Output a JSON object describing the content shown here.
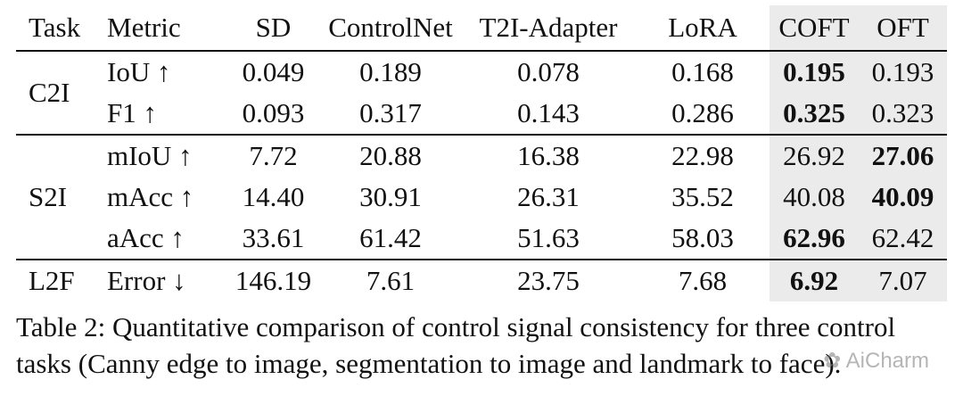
{
  "table": {
    "headers": [
      "Task",
      "Metric",
      "SD",
      "ControlNet",
      "T2I-Adapter",
      "LoRA",
      "COFT",
      "OFT"
    ],
    "groups": [
      {
        "task": "C2I",
        "rows": [
          {
            "metric": "IoU ↑",
            "values": [
              "0.049",
              "0.189",
              "0.078",
              "0.168",
              "0.195",
              "0.193"
            ],
            "bold_index": 4
          },
          {
            "metric": "F1 ↑",
            "values": [
              "0.093",
              "0.317",
              "0.143",
              "0.286",
              "0.325",
              "0.323"
            ],
            "bold_index": 4
          }
        ]
      },
      {
        "task": "S2I",
        "rows": [
          {
            "metric": "mIoU ↑",
            "values": [
              "7.72",
              "20.88",
              "16.38",
              "22.98",
              "26.92",
              "27.06"
            ],
            "bold_index": 5
          },
          {
            "metric": "mAcc ↑",
            "values": [
              "14.40",
              "30.91",
              "26.31",
              "35.52",
              "40.08",
              "40.09"
            ],
            "bold_index": 5
          },
          {
            "metric": "aAcc ↑",
            "values": [
              "33.61",
              "61.42",
              "51.63",
              "58.03",
              "62.96",
              "62.42"
            ],
            "bold_index": 4
          }
        ]
      },
      {
        "task": "L2F",
        "rows": [
          {
            "metric": "Error ↓",
            "values": [
              "146.19",
              "7.61",
              "23.75",
              "7.68",
              "6.92",
              "7.07"
            ],
            "bold_index": 4
          }
        ]
      }
    ]
  },
  "caption": {
    "line1": "Table 2: Quantitative comparison of control signal consistency for three control",
    "line2": "tasks (Canny edge to image, segmentation to image and landmark to face)."
  },
  "watermark": "AiCharm"
}
